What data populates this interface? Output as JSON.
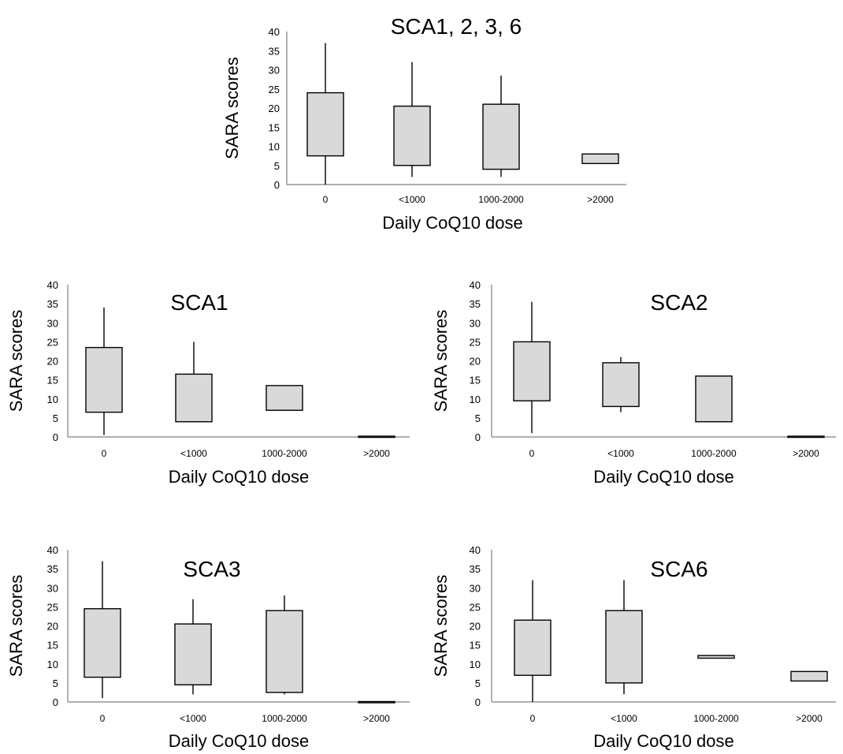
{
  "chart_data": [
    {
      "type": "box",
      "title": "SCA1, 2, 3, 6",
      "xlabel": "Daily CoQ10 dose",
      "ylabel": "SARA scores",
      "ylim": [
        0,
        40
      ],
      "yticks": [
        0,
        5,
        10,
        15,
        20,
        25,
        30,
        35,
        40
      ],
      "categories": [
        "0",
        "<1000",
        "1000-2000",
        ">2000"
      ],
      "boxes": [
        {
          "min": 0,
          "q1": 7.5,
          "q3": 24,
          "max": 37
        },
        {
          "min": 2,
          "q1": 5,
          "q3": 20.5,
          "max": 32
        },
        {
          "min": 2,
          "q1": 4,
          "q3": 21,
          "max": 28.5
        },
        {
          "min": 5.5,
          "q1": 5.5,
          "q3": 8,
          "max": 8
        }
      ]
    },
    {
      "type": "box",
      "title": "SCA1",
      "xlabel": "Daily CoQ10 dose",
      "ylabel": "SARA scores",
      "ylim": [
        0,
        40
      ],
      "yticks": [
        0,
        5,
        10,
        15,
        20,
        25,
        30,
        35,
        40
      ],
      "categories": [
        "0",
        "<1000",
        "1000-2000",
        ">2000"
      ],
      "boxes": [
        {
          "min": 0.5,
          "q1": 6.5,
          "q3": 23.5,
          "max": 34
        },
        {
          "min": 4,
          "q1": 4,
          "q3": 16.5,
          "max": 25
        },
        {
          "min": 7,
          "q1": 7,
          "q3": 13.5,
          "max": 13.5
        },
        {
          "min": 0,
          "q1": 0,
          "q3": 0.2,
          "max": 0.2
        }
      ]
    },
    {
      "type": "box",
      "title": "SCA2",
      "xlabel": "Daily CoQ10 dose",
      "ylabel": "SARA scores",
      "ylim": [
        0,
        40
      ],
      "yticks": [
        0,
        5,
        10,
        15,
        20,
        25,
        30,
        35,
        40
      ],
      "categories": [
        "0",
        "<1000",
        "1000-2000",
        ">2000"
      ],
      "boxes": [
        {
          "min": 1,
          "q1": 9.5,
          "q3": 25,
          "max": 35.5
        },
        {
          "min": 6.5,
          "q1": 8,
          "q3": 19.5,
          "max": 21
        },
        {
          "min": 4,
          "q1": 4,
          "q3": 16,
          "max": 16
        },
        {
          "min": 0,
          "q1": 0,
          "q3": 0.2,
          "max": 0.2
        }
      ]
    },
    {
      "type": "box",
      "title": "SCA3",
      "xlabel": "Daily CoQ10 dose",
      "ylabel": "SARA scores",
      "ylim": [
        0,
        40
      ],
      "yticks": [
        0,
        5,
        10,
        15,
        20,
        25,
        30,
        35,
        40
      ],
      "categories": [
        "0",
        "<1000",
        "1000-2000",
        ">2000"
      ],
      "boxes": [
        {
          "min": 1,
          "q1": 6.5,
          "q3": 24.5,
          "max": 37
        },
        {
          "min": 2,
          "q1": 4.5,
          "q3": 20.5,
          "max": 27
        },
        {
          "min": 2,
          "q1": 2.5,
          "q3": 24,
          "max": 28
        },
        {
          "min": 0,
          "q1": 0,
          "q3": 0.1,
          "max": 0.1
        }
      ]
    },
    {
      "type": "box",
      "title": "SCA6",
      "xlabel": "Daily CoQ10 dose",
      "ylabel": "SARA scores",
      "ylim": [
        0,
        40
      ],
      "yticks": [
        0,
        5,
        10,
        15,
        20,
        25,
        30,
        35,
        40
      ],
      "categories": [
        "0",
        "<1000",
        "1000-2000",
        ">2000"
      ],
      "boxes": [
        {
          "min": 0,
          "q1": 7,
          "q3": 21.5,
          "max": 32
        },
        {
          "min": 2,
          "q1": 5,
          "q3": 24,
          "max": 32
        },
        {
          "min": 11.5,
          "q1": 11.5,
          "q3": 12.2,
          "max": 12.2
        },
        {
          "min": 5.5,
          "q1": 5.5,
          "q3": 8,
          "max": 8
        }
      ]
    }
  ]
}
